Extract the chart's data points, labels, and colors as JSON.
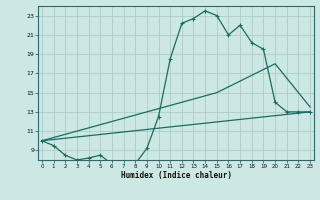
{
  "xlabel": "Humidex (Indice chaleur)",
  "background_color": "#cce8e4",
  "grid_color": "#b0ccc8",
  "line_color": "#1a6b60",
  "xlim_min": 0,
  "xlim_max": 23,
  "ylim_min": 8,
  "ylim_max": 24,
  "xticks": [
    0,
    1,
    2,
    3,
    4,
    5,
    6,
    7,
    8,
    9,
    10,
    11,
    12,
    13,
    14,
    15,
    16,
    17,
    18,
    19,
    20,
    21,
    22,
    23
  ],
  "yticks": [
    9,
    11,
    13,
    15,
    17,
    19,
    21,
    23
  ],
  "line1_x": [
    0,
    1,
    2,
    3,
    4,
    5,
    6,
    7,
    8,
    9,
    10,
    11,
    12,
    13,
    14,
    15,
    16,
    17,
    18,
    19,
    20,
    21,
    22,
    23
  ],
  "line1_y": [
    10.0,
    9.5,
    8.5,
    8.0,
    8.2,
    8.5,
    7.6,
    7.6,
    7.6,
    9.2,
    12.5,
    18.5,
    22.2,
    22.7,
    23.5,
    23.0,
    21.0,
    22.0,
    20.2,
    19.5,
    14.0,
    13.0,
    13.0,
    13.0
  ],
  "line2_x": [
    0,
    23
  ],
  "line2_y": [
    10.0,
    13.0
  ],
  "line3_x": [
    0,
    15,
    20,
    23
  ],
  "line3_y": [
    10.0,
    15.0,
    18.0,
    13.5
  ]
}
